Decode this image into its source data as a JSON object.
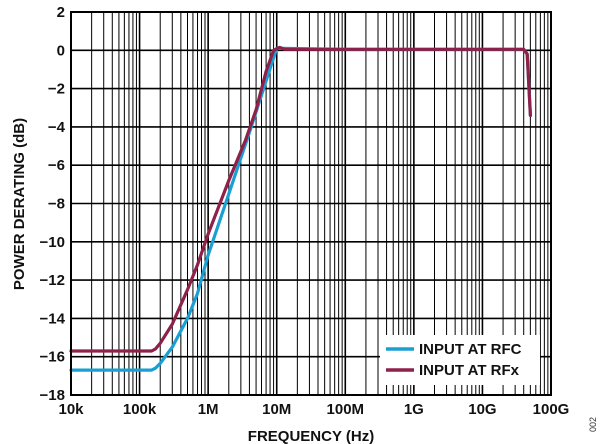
{
  "chart_data": {
    "type": "line",
    "xlabel": "FREQUENCY (Hz)",
    "ylabel": "POWER DERATING (dB)",
    "xscale": "log",
    "xlim": [
      10000,
      100000000000
    ],
    "ylim": [
      -18,
      2
    ],
    "xticks": [
      {
        "value": 10000,
        "label": "10k"
      },
      {
        "value": 100000,
        "label": "100k"
      },
      {
        "value": 1000000,
        "label": "1M"
      },
      {
        "value": 10000000,
        "label": "10M"
      },
      {
        "value": 100000000,
        "label": "100M"
      },
      {
        "value": 1000000000,
        "label": "1G"
      },
      {
        "value": 10000000000,
        "label": "10G"
      },
      {
        "value": 100000000000,
        "label": "100G"
      }
    ],
    "yticks": [
      {
        "value": 2,
        "label": "2"
      },
      {
        "value": 0,
        "label": "0"
      },
      {
        "value": -2,
        "label": "−2"
      },
      {
        "value": -4,
        "label": "−4"
      },
      {
        "value": -6,
        "label": "−6"
      },
      {
        "value": -8,
        "label": "−8"
      },
      {
        "value": -10,
        "label": "−10"
      },
      {
        "value": -12,
        "label": "−12"
      },
      {
        "value": -14,
        "label": "−14"
      },
      {
        "value": -16,
        "label": "−16"
      },
      {
        "value": -18,
        "label": "−18"
      }
    ],
    "grid": true,
    "legend_position": "bottom-right",
    "series": [
      {
        "name": "INPUT AT RFC",
        "color": "#1a9fd4",
        "points": [
          [
            10000,
            -16.7
          ],
          [
            100000,
            -16.7
          ],
          [
            150000,
            -16.7
          ],
          [
            170000,
            -16.6
          ],
          [
            200000,
            -16.35
          ],
          [
            300000,
            -15.5
          ],
          [
            500000,
            -14.0
          ],
          [
            700000,
            -12.7
          ],
          [
            1000000,
            -10.7
          ],
          [
            2000000,
            -7.5
          ],
          [
            4000000,
            -4.3
          ],
          [
            7000000,
            -1.6
          ],
          [
            10000000,
            0.1
          ],
          [
            12000000,
            0.1
          ],
          [
            100000000,
            0.05
          ],
          [
            1000000000,
            0.05
          ],
          [
            10000000000,
            0.05
          ],
          [
            40000000000,
            0.05
          ],
          [
            45000000000,
            -0.2
          ],
          [
            47000000000,
            -1.5
          ],
          [
            50000000000,
            -3.4
          ]
        ]
      },
      {
        "name": "INPUT AT RFx",
        "color": "#8e2149",
        "points": [
          [
            10000,
            -15.7
          ],
          [
            100000,
            -15.7
          ],
          [
            150000,
            -15.7
          ],
          [
            170000,
            -15.6
          ],
          [
            200000,
            -15.3
          ],
          [
            300000,
            -14.3
          ],
          [
            500000,
            -12.5
          ],
          [
            700000,
            -11.2
          ],
          [
            1000000,
            -9.6
          ],
          [
            2000000,
            -6.8
          ],
          [
            3500000,
            -4.7
          ],
          [
            5000000,
            -3.1
          ],
          [
            7000000,
            -1.1
          ],
          [
            9000000,
            0.0
          ],
          [
            11000000,
            0.15
          ],
          [
            13000000,
            0.05
          ],
          [
            100000000,
            0.05
          ],
          [
            1000000000,
            0.05
          ],
          [
            10000000000,
            0.05
          ],
          [
            40000000000,
            0.05
          ],
          [
            45000000000,
            -0.2
          ],
          [
            47000000000,
            -1.5
          ],
          [
            50000000000,
            -3.4
          ]
        ]
      }
    ]
  },
  "figure_number": "002"
}
